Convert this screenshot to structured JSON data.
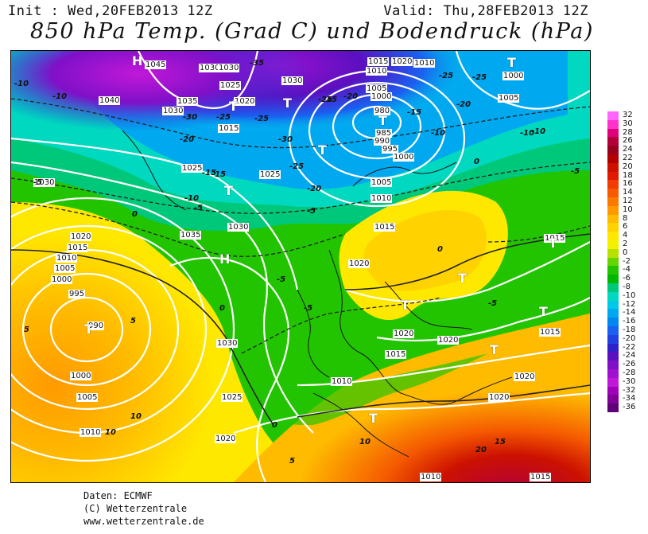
{
  "header": {
    "init": "Init : Wed,20FEB2013 12Z",
    "valid": "Valid: Thu,28FEB2013 12Z",
    "title": "850 hPa Temp. (Grad C) und Bodendruck (hPa)"
  },
  "scale": {
    "labels": [
      "32",
      "30",
      "28",
      "26",
      "24",
      "22",
      "20",
      "18",
      "16",
      "14",
      "12",
      "10",
      "8",
      "6",
      "4",
      "2",
      "0",
      "-2",
      "-4",
      "-6",
      "-8",
      "-10",
      "-12",
      "-14",
      "-16",
      "-18",
      "-20",
      "-22",
      "-24",
      "-26",
      "-28",
      "-30",
      "-32",
      "-34",
      "-36"
    ],
    "colors": [
      "#ff66ff",
      "#ff33cc",
      "#e0007a",
      "#b3003b",
      "#99001f",
      "#b30000",
      "#cc1100",
      "#e01a00",
      "#f03c00",
      "#f55a00",
      "#fa7a00",
      "#ff9a00",
      "#ffbb00",
      "#ffd200",
      "#ffe800",
      "#f2f200",
      "#b8e000",
      "#66d400",
      "#22c400",
      "#00b800",
      "#00c87a",
      "#00d8c0",
      "#00c8e8",
      "#00a8f0",
      "#0088f0",
      "#1a60f0",
      "#2040e0",
      "#3020c8",
      "#5a10c0",
      "#8010c8",
      "#a010d0",
      "#c018d8",
      "#a000b8",
      "#800098",
      "#600078"
    ]
  },
  "isobars": [
    "1045",
    "1030",
    "1030",
    "1040",
    "1035",
    "1030",
    "1025",
    "1020",
    "1015",
    "1030",
    "1025",
    "1010",
    "1005",
    "1000",
    "995",
    "990",
    "985",
    "980",
    "1010",
    "1005",
    "1000",
    "995",
    "1020",
    "1015",
    "1030",
    "1025",
    "1035",
    "1030",
    "1020",
    "1015",
    "1010",
    "1005",
    "1000",
    "995",
    "990",
    "1000",
    "1005",
    "1010",
    "1020",
    "1025",
    "1030",
    "1020",
    "1015",
    "1010",
    "1015",
    "1010",
    "1020",
    "1020",
    "1015",
    "1015",
    "1020",
    "1020",
    "1015",
    "1010",
    "1005",
    "1000"
  ],
  "temps": [
    "-10",
    "-10",
    "-35",
    "-30",
    "-25",
    "-25",
    "-20",
    "-15",
    "-25",
    "-25",
    "-20",
    "-20",
    "-15",
    "-10",
    "-5",
    "-10",
    "-15",
    "-30",
    "-25",
    "-20",
    "-25",
    "-5",
    "-5",
    "0",
    "-5",
    "5",
    "0",
    "0",
    "10",
    "10",
    "5",
    "5",
    "10",
    "15",
    "20",
    "0",
    "0",
    "-5",
    "-5",
    "-10",
    "-15",
    "-10",
    "-5"
  ],
  "pressure_centers": [
    "H",
    "H",
    "T",
    "T",
    "T",
    "T",
    "T",
    "T",
    "T",
    "T",
    "T",
    "T",
    "T",
    "T",
    "T"
  ],
  "footer": {
    "line1": "Daten: ECMWF",
    "line2": "(C) Wetterzentrale",
    "line3": "www.wetterzentrale.de"
  }
}
